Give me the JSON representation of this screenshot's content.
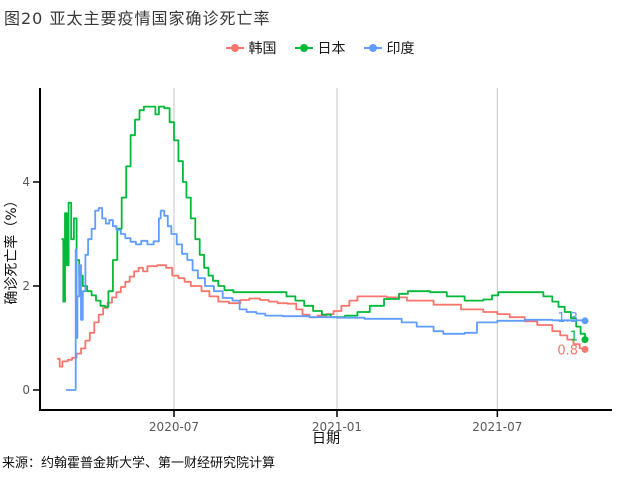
{
  "title": "图20 亚太主要疫情国家确诊死亡率",
  "source_note": "来源：约翰霍普金斯大学、第一财经研究院计算",
  "colors": {
    "korea": "#F8766D",
    "japan": "#00BA38",
    "india": "#619CFF",
    "axis": "#000000",
    "tick_label": "#595959",
    "gridline": "#c6c6c6"
  },
  "legend": [
    {
      "key": "korea",
      "label": "韩国",
      "color": "#F8766D"
    },
    {
      "key": "japan",
      "label": "日本",
      "color": "#00BA38"
    },
    {
      "key": "india",
      "label": "印度",
      "color": "#619CFF"
    }
  ],
  "chart_data": {
    "type": "line",
    "line_style": "step-after",
    "title": "图20 亚太主要疫情国家确诊死亡率",
    "xlabel": "日期",
    "ylabel": "确诊死亡率（%）",
    "unit": "%",
    "grid": "vertical",
    "legend_position": "top-center",
    "x_ticks": [
      {
        "label": "2020-07",
        "date": "2020-07-01"
      },
      {
        "label": "2021-01",
        "date": "2021-01-01"
      },
      {
        "label": "2021-07",
        "date": "2021-07-01"
      }
    ],
    "y_ticks": [
      0,
      2,
      4
    ],
    "ylim": [
      -0.4,
      5.9
    ],
    "x_range": [
      "2020-02-15",
      "2021-10-08"
    ],
    "series": [
      {
        "name": "韩国",
        "key": "korea",
        "color": "#F8766D",
        "end_label": "0.8",
        "end_label_dy": 4,
        "points": [
          [
            "2020-02-20",
            0.6
          ],
          [
            "2020-02-23",
            0.45
          ],
          [
            "2020-02-26",
            0.55
          ],
          [
            "2020-03-03",
            0.58
          ],
          [
            "2020-03-08",
            0.62
          ],
          [
            "2020-03-13",
            0.7
          ],
          [
            "2020-03-18",
            0.8
          ],
          [
            "2020-03-23",
            0.95
          ],
          [
            "2020-03-28",
            1.1
          ],
          [
            "2020-04-02",
            1.3
          ],
          [
            "2020-04-07",
            1.45
          ],
          [
            "2020-04-12",
            1.58
          ],
          [
            "2020-04-17",
            1.68
          ],
          [
            "2020-04-22",
            1.78
          ],
          [
            "2020-04-27",
            1.88
          ],
          [
            "2020-05-02",
            1.98
          ],
          [
            "2020-05-07",
            2.08
          ],
          [
            "2020-05-12",
            2.18
          ],
          [
            "2020-05-17",
            2.28
          ],
          [
            "2020-05-22",
            2.35
          ],
          [
            "2020-05-27",
            2.28
          ],
          [
            "2020-06-01",
            2.38
          ],
          [
            "2020-06-12",
            2.4
          ],
          [
            "2020-06-22",
            2.35
          ],
          [
            "2020-06-29",
            2.2
          ],
          [
            "2020-07-06",
            2.15
          ],
          [
            "2020-07-13",
            2.08
          ],
          [
            "2020-07-20",
            2.0
          ],
          [
            "2020-08-01",
            1.9
          ],
          [
            "2020-08-10",
            1.8
          ],
          [
            "2020-08-20",
            1.7
          ],
          [
            "2020-09-01",
            1.67
          ],
          [
            "2020-09-14",
            1.73
          ],
          [
            "2020-09-24",
            1.76
          ],
          [
            "2020-10-06",
            1.73
          ],
          [
            "2020-10-16",
            1.7
          ],
          [
            "2020-10-26",
            1.67
          ],
          [
            "2020-11-06",
            1.66
          ],
          [
            "2020-11-16",
            1.55
          ],
          [
            "2020-11-23",
            1.45
          ],
          [
            "2020-12-01",
            1.4
          ],
          [
            "2020-12-10",
            1.43
          ],
          [
            "2020-12-20",
            1.46
          ],
          [
            "2020-12-28",
            1.52
          ],
          [
            "2021-01-06",
            1.62
          ],
          [
            "2021-01-15",
            1.72
          ],
          [
            "2021-01-24",
            1.8
          ],
          [
            "2021-02-15",
            1.8
          ],
          [
            "2021-02-26",
            1.78
          ],
          [
            "2021-03-21",
            1.72
          ],
          [
            "2021-04-20",
            1.64
          ],
          [
            "2021-05-21",
            1.55
          ],
          [
            "2021-06-15",
            1.5
          ],
          [
            "2021-07-01",
            1.46
          ],
          [
            "2021-07-15",
            1.4
          ],
          [
            "2021-08-01",
            1.32
          ],
          [
            "2021-08-15",
            1.25
          ],
          [
            "2021-09-01",
            1.13
          ],
          [
            "2021-09-10",
            1.05
          ],
          [
            "2021-09-18",
            0.97
          ],
          [
            "2021-09-25",
            0.88
          ],
          [
            "2021-10-02",
            0.8
          ],
          [
            "2021-10-08",
            0.78
          ]
        ]
      },
      {
        "name": "日本",
        "key": "japan",
        "color": "#00BA38",
        "end_label": "1",
        "end_label_dy": 0,
        "points": [
          [
            "2020-02-25",
            2.9
          ],
          [
            "2020-02-27",
            1.7
          ],
          [
            "2020-02-29",
            3.4
          ],
          [
            "2020-03-02",
            2.4
          ],
          [
            "2020-03-04",
            3.6
          ],
          [
            "2020-03-07",
            2.9
          ],
          [
            "2020-03-10",
            3.3
          ],
          [
            "2020-03-13",
            2.5
          ],
          [
            "2020-03-16",
            2.2
          ],
          [
            "2020-03-20",
            2.0
          ],
          [
            "2020-03-25",
            1.9
          ],
          [
            "2020-03-30",
            1.82
          ],
          [
            "2020-04-04",
            1.72
          ],
          [
            "2020-04-09",
            1.62
          ],
          [
            "2020-04-14",
            1.6
          ],
          [
            "2020-04-18",
            1.9
          ],
          [
            "2020-04-23",
            2.5
          ],
          [
            "2020-04-28",
            3.1
          ],
          [
            "2020-05-03",
            3.7
          ],
          [
            "2020-05-08",
            4.3
          ],
          [
            "2020-05-13",
            4.9
          ],
          [
            "2020-05-18",
            5.2
          ],
          [
            "2020-05-23",
            5.38
          ],
          [
            "2020-05-28",
            5.45
          ],
          [
            "2020-06-08",
            5.45
          ],
          [
            "2020-06-10",
            5.3
          ],
          [
            "2020-06-14",
            5.45
          ],
          [
            "2020-06-20",
            5.42
          ],
          [
            "2020-06-26",
            5.15
          ],
          [
            "2020-07-01",
            4.8
          ],
          [
            "2020-07-06",
            4.4
          ],
          [
            "2020-07-11",
            4.0
          ],
          [
            "2020-07-15",
            3.7
          ],
          [
            "2020-07-20",
            3.3
          ],
          [
            "2020-07-25",
            2.9
          ],
          [
            "2020-07-30",
            2.6
          ],
          [
            "2020-08-04",
            2.35
          ],
          [
            "2020-08-09",
            2.2
          ],
          [
            "2020-08-14",
            2.1
          ],
          [
            "2020-08-20",
            2.0
          ],
          [
            "2020-08-27",
            1.92
          ],
          [
            "2020-09-06",
            1.88
          ],
          [
            "2020-10-25",
            1.88
          ],
          [
            "2020-11-05",
            1.8
          ],
          [
            "2020-11-15",
            1.72
          ],
          [
            "2020-11-25",
            1.62
          ],
          [
            "2020-12-05",
            1.52
          ],
          [
            "2020-12-15",
            1.45
          ],
          [
            "2020-12-25",
            1.4
          ],
          [
            "2021-01-10",
            1.43
          ],
          [
            "2021-01-24",
            1.5
          ],
          [
            "2021-02-07",
            1.62
          ],
          [
            "2021-02-23",
            1.75
          ],
          [
            "2021-03-12",
            1.85
          ],
          [
            "2021-03-22",
            1.9
          ],
          [
            "2021-04-16",
            1.88
          ],
          [
            "2021-05-05",
            1.8
          ],
          [
            "2021-05-25",
            1.72
          ],
          [
            "2021-06-15",
            1.74
          ],
          [
            "2021-06-25",
            1.82
          ],
          [
            "2021-07-02",
            1.88
          ],
          [
            "2021-08-12",
            1.88
          ],
          [
            "2021-08-22",
            1.8
          ],
          [
            "2021-09-01",
            1.7
          ],
          [
            "2021-09-08",
            1.6
          ],
          [
            "2021-09-15",
            1.5
          ],
          [
            "2021-09-22",
            1.38
          ],
          [
            "2021-09-28",
            1.22
          ],
          [
            "2021-10-03",
            1.08
          ],
          [
            "2021-10-08",
            0.97
          ]
        ]
      },
      {
        "name": "印度",
        "key": "india",
        "color": "#619CFF",
        "end_label": "1.3",
        "end_label_dy": 0,
        "points": [
          [
            "2020-03-01",
            0
          ],
          [
            "2020-03-11",
            0
          ],
          [
            "2020-03-12",
            2.7
          ],
          [
            "2020-03-13",
            1.0
          ],
          [
            "2020-03-14",
            1.8
          ],
          [
            "2020-03-16",
            2.4
          ],
          [
            "2020-03-18",
            1.35
          ],
          [
            "2020-03-20",
            1.9
          ],
          [
            "2020-03-23",
            2.6
          ],
          [
            "2020-03-26",
            2.9
          ],
          [
            "2020-03-30",
            3.1
          ],
          [
            "2020-04-03",
            3.45
          ],
          [
            "2020-04-07",
            3.5
          ],
          [
            "2020-04-11",
            3.3
          ],
          [
            "2020-04-15",
            3.2
          ],
          [
            "2020-04-19",
            3.27
          ],
          [
            "2020-04-23",
            3.15
          ],
          [
            "2020-04-27",
            3.08
          ],
          [
            "2020-05-02",
            3.0
          ],
          [
            "2020-05-07",
            2.92
          ],
          [
            "2020-05-13",
            2.85
          ],
          [
            "2020-05-19",
            2.8
          ],
          [
            "2020-05-25",
            2.87
          ],
          [
            "2020-06-01",
            2.8
          ],
          [
            "2020-06-08",
            2.86
          ],
          [
            "2020-06-14",
            3.3
          ],
          [
            "2020-06-16",
            3.45
          ],
          [
            "2020-06-20",
            3.35
          ],
          [
            "2020-06-24",
            3.15
          ],
          [
            "2020-06-28",
            3.0
          ],
          [
            "2020-07-04",
            2.8
          ],
          [
            "2020-07-10",
            2.62
          ],
          [
            "2020-07-16",
            2.5
          ],
          [
            "2020-07-22",
            2.3
          ],
          [
            "2020-07-28",
            2.15
          ],
          [
            "2020-08-05",
            2.0
          ],
          [
            "2020-08-15",
            1.9
          ],
          [
            "2020-08-25",
            1.77
          ],
          [
            "2020-09-05",
            1.72
          ],
          [
            "2020-09-13",
            1.55
          ],
          [
            "2020-09-21",
            1.5
          ],
          [
            "2020-10-02",
            1.47
          ],
          [
            "2020-10-12",
            1.43
          ],
          [
            "2020-11-01",
            1.42
          ],
          [
            "2020-12-01",
            1.4
          ],
          [
            "2021-01-01",
            1.39
          ],
          [
            "2021-02-01",
            1.37
          ],
          [
            "2021-03-15",
            1.3
          ],
          [
            "2021-04-01",
            1.22
          ],
          [
            "2021-04-20",
            1.13
          ],
          [
            "2021-05-01",
            1.08
          ],
          [
            "2021-05-25",
            1.1
          ],
          [
            "2021-06-08",
            1.3
          ],
          [
            "2021-07-01",
            1.33
          ],
          [
            "2021-08-01",
            1.35
          ],
          [
            "2021-09-01",
            1.34
          ],
          [
            "2021-10-08",
            1.33
          ]
        ]
      }
    ]
  }
}
